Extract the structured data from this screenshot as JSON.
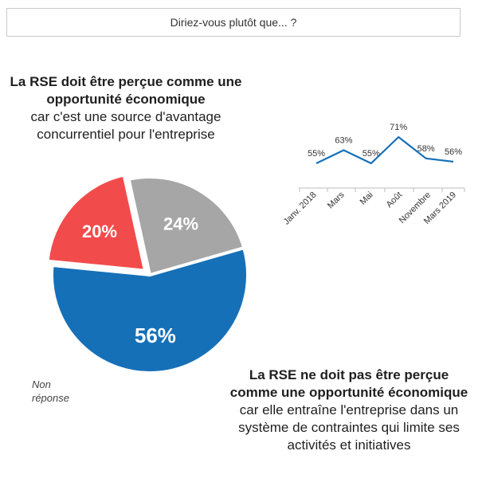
{
  "question": "Diriez-vous plutôt que... ?",
  "left_statement": {
    "bold": "La RSE doit être perçue comme une opportunité économique",
    "rest": "car c'est une source d'avantage concurrentiel pour l'entreprise"
  },
  "right_statement": {
    "bold": "La RSE ne doit pas être perçue comme une opportunité économique",
    "rest": "car elle entraîne l'entreprise dans un système de contraintes qui limite ses activités et initiatives"
  },
  "non_reponse_label": "Non réponse",
  "colors": {
    "blue": "#1570b8",
    "red": "#f24b4b",
    "gray": "#a6a6a6",
    "line": "#1570b8"
  },
  "chart_data": [
    {
      "type": "pie",
      "title": "",
      "slices": [
        {
          "label": "La RSE doit être perçue comme une opportunité économique",
          "value": 56,
          "display": "56%",
          "color": "#1570b8"
        },
        {
          "label": "La RSE ne doit pas être perçue comme une opportunité économique",
          "value": 20,
          "display": "20%",
          "color": "#f24b4b"
        },
        {
          "label": "Non réponse",
          "value": 24,
          "display": "24%",
          "color": "#a6a6a6"
        }
      ]
    },
    {
      "type": "line",
      "series": [
        {
          "name": "La RSE doit être perçue comme une opportunité économique",
          "values": [
            55,
            63,
            55,
            71,
            58,
            56
          ]
        }
      ],
      "categories": [
        "Janv. 2018",
        "Mars",
        "Mai",
        "Août",
        "Novembre",
        "Mars 2019"
      ],
      "data_labels": [
        "55%",
        "63%",
        "55%",
        "71%",
        "58%",
        "56%"
      ],
      "ylim": [
        0,
        100
      ]
    }
  ]
}
